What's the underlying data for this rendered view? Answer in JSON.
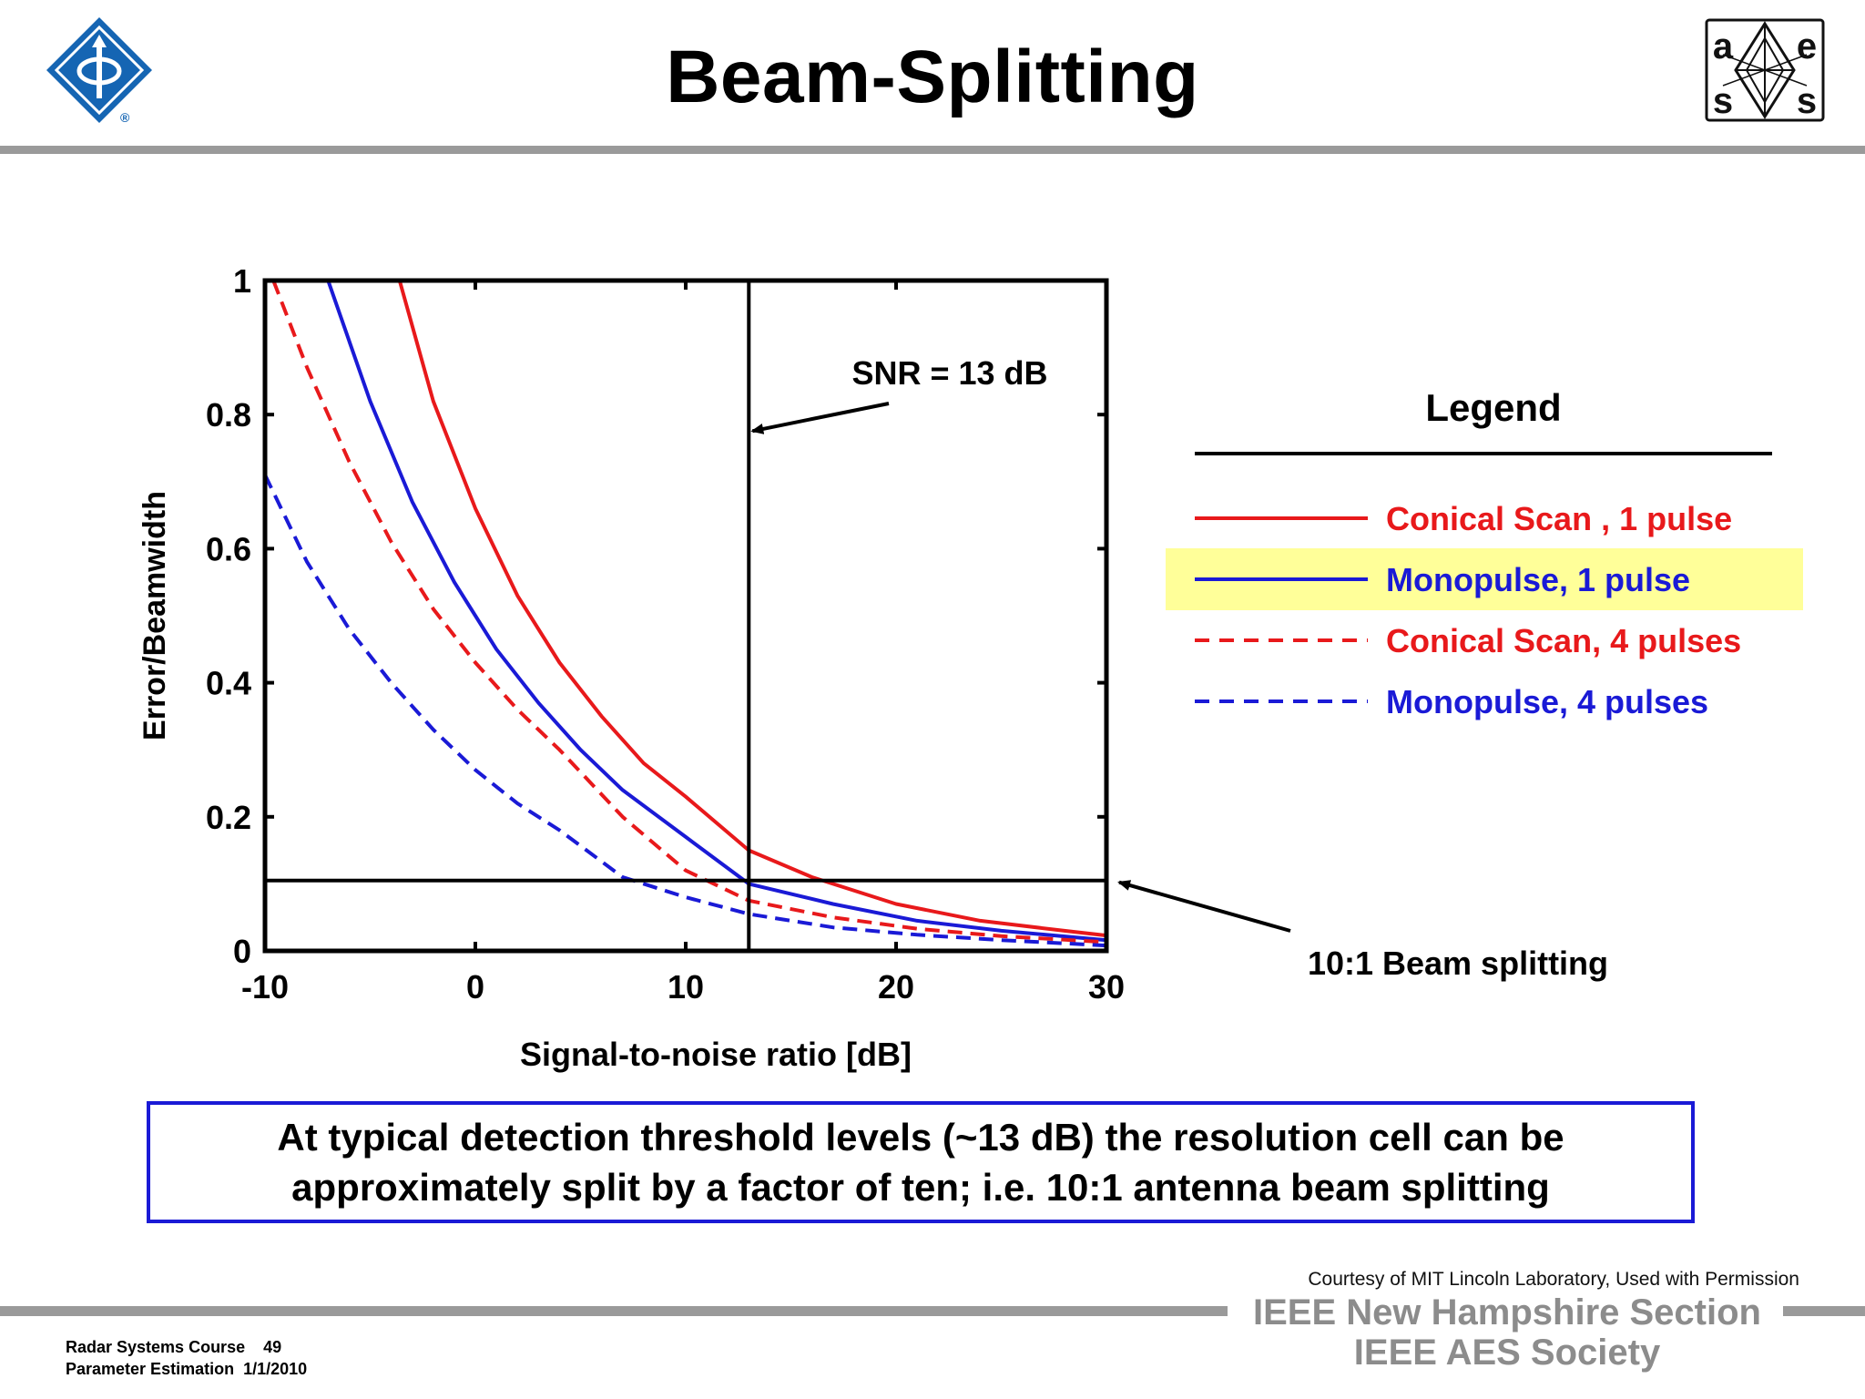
{
  "title": "Beam-Splitting",
  "logos": {
    "ieee": {
      "icon": "ieee-diamond-logo",
      "mark": "®",
      "color": "#1565b3"
    },
    "aess": {
      "icon": "aess-logo",
      "letters": [
        "a",
        "e",
        "s",
        "s"
      ]
    }
  },
  "chart_data": {
    "type": "line",
    "title": "",
    "xlabel": "Signal-to-noise ratio [dB]",
    "ylabel": "Error/Beamwidth",
    "xlim": [
      -10,
      30
    ],
    "ylim": [
      0,
      1
    ],
    "xticks": [
      -10,
      0,
      10,
      20,
      30
    ],
    "xtick_labels": [
      "-10",
      "0",
      "10",
      "20",
      "30"
    ],
    "yticks": [
      0,
      0.2,
      0.4,
      0.6,
      0.8,
      1
    ],
    "ytick_labels": [
      "0",
      "0.2",
      "0.4",
      "0.6",
      "0.8",
      "1"
    ],
    "grid": false,
    "legend_title": "Legend",
    "legend_position": "right",
    "series": [
      {
        "name": "Conical Scan , 1 pulse",
        "color": "#e8191b",
        "dash": false,
        "x": [
          -3.6,
          -2,
          0,
          2,
          4,
          6,
          8,
          10,
          13,
          16,
          20,
          24,
          28,
          30
        ],
        "y": [
          1.0,
          0.82,
          0.66,
          0.53,
          0.43,
          0.35,
          0.28,
          0.23,
          0.15,
          0.11,
          0.07,
          0.045,
          0.03,
          0.023
        ]
      },
      {
        "name": "Monopulse, 1 pulse",
        "color": "#1a1ad6",
        "dash": false,
        "highlight": "#ffff99",
        "x": [
          -7,
          -5,
          -3,
          -1,
          1,
          3,
          5,
          7,
          10,
          13,
          17,
          21,
          25,
          30
        ],
        "y": [
          1.0,
          0.82,
          0.67,
          0.55,
          0.45,
          0.37,
          0.3,
          0.24,
          0.17,
          0.1,
          0.07,
          0.045,
          0.03,
          0.016
        ]
      },
      {
        "name": "Conical Scan, 4 pulses",
        "color": "#e8191b",
        "dash": true,
        "x": [
          -9.6,
          -8,
          -6,
          -4,
          -2,
          0,
          2,
          4,
          7,
          10,
          13,
          17,
          21,
          25,
          30
        ],
        "y": [
          1.0,
          0.87,
          0.73,
          0.61,
          0.51,
          0.43,
          0.36,
          0.3,
          0.2,
          0.12,
          0.075,
          0.05,
          0.033,
          0.022,
          0.013
        ]
      },
      {
        "name": "Monopulse, 4 pulses",
        "color": "#1a1ad6",
        "dash": true,
        "x": [
          -10,
          -8,
          -6,
          -4,
          -2,
          0,
          2,
          4,
          7,
          10,
          13,
          17,
          21,
          25,
          30
        ],
        "y": [
          0.71,
          0.58,
          0.48,
          0.4,
          0.33,
          0.27,
          0.22,
          0.18,
          0.11,
          0.08,
          0.055,
          0.035,
          0.024,
          0.016,
          0.008
        ]
      }
    ],
    "reference_lines": [
      {
        "orientation": "vertical",
        "x": 13,
        "color": "#000000"
      },
      {
        "orientation": "horizontal",
        "y": 0.105,
        "color": "#000000"
      }
    ],
    "annotations": [
      {
        "text": "SNR = 13 dB",
        "points_to": {
          "x": 13,
          "y": 0.77
        }
      },
      {
        "text": "10:1 Beam splitting",
        "points_to": {
          "x": 30,
          "y": 0.105
        }
      }
    ]
  },
  "caption": "At typical detection threshold levels (~13 dB) the resolution cell can be\napproximately split by a factor of ten; i.e. 10:1 antenna beam splitting",
  "footer": {
    "courtesy": "Courtesy of MIT Lincoln Laboratory, Used with Permission",
    "society_line1": "IEEE New Hampshire Section",
    "society_line2": "IEEE AES Society",
    "course_line1": "Radar Systems Course    49",
    "course_line2": "Parameter Estimation  1/1/2010"
  }
}
